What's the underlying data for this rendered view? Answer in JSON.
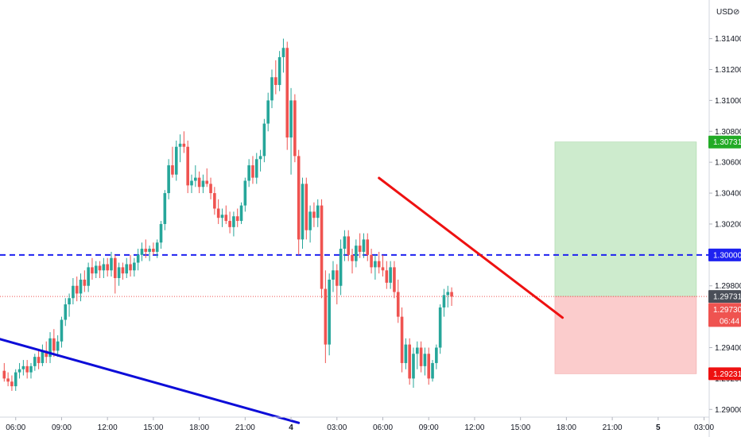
{
  "currency_label": "USD",
  "chart_data": {
    "type": "candlestick",
    "price_axis": {
      "ylim": [
        1.2895,
        1.3165
      ],
      "ticks": [
        "1.31400",
        "1.31200",
        "1.31000",
        "1.30800",
        "1.30600",
        "1.30400",
        "1.30200",
        "1.30000",
        "1.29800",
        "1.29600",
        "1.29400",
        "1.29200",
        "1.29000"
      ],
      "tick_values": [
        1.314,
        1.312,
        1.31,
        1.308,
        1.306,
        1.304,
        1.302,
        1.3,
        1.298,
        1.296,
        1.294,
        1.292,
        1.29
      ]
    },
    "time_axis": {
      "labels": [
        "06:00",
        "09:00",
        "12:00",
        "15:00",
        "18:00",
        "21:00",
        "4",
        "03:00",
        "06:00",
        "09:00",
        "12:00",
        "15:00",
        "18:00",
        "21:00",
        "5",
        "03:00"
      ],
      "index": [
        4,
        16,
        28,
        40,
        52,
        64,
        76,
        88,
        100,
        112,
        124,
        136,
        148,
        160,
        172,
        184
      ],
      "bold": [
        false,
        false,
        false,
        false,
        false,
        false,
        true,
        false,
        false,
        false,
        false,
        false,
        false,
        false,
        true,
        false
      ],
      "range": [
        1,
        184
      ]
    },
    "candles": [
      [
        1.2925,
        1.293,
        1.2918,
        1.292
      ],
      [
        1.292,
        1.2924,
        1.2915,
        1.2918
      ],
      [
        1.2918,
        1.2922,
        1.2912,
        1.2915
      ],
      [
        1.2915,
        1.2926,
        1.2912,
        1.2924
      ],
      [
        1.2924,
        1.293,
        1.292,
        1.2926
      ],
      [
        1.2926,
        1.2932,
        1.2922,
        1.2928
      ],
      [
        1.2928,
        1.2932,
        1.292,
        1.2924
      ],
      [
        1.2924,
        1.293,
        1.292,
        1.2928
      ],
      [
        1.2928,
        1.2936,
        1.2925,
        1.2934
      ],
      [
        1.2934,
        1.2938,
        1.2926,
        1.293
      ],
      [
        1.293,
        1.2942,
        1.2928,
        1.2938
      ],
      [
        1.2938,
        1.2944,
        1.293,
        1.2934
      ],
      [
        1.2934,
        1.295,
        1.293,
        1.2946
      ],
      [
        1.2946,
        1.2952,
        1.2934,
        1.2938
      ],
      [
        1.2938,
        1.2948,
        1.2934,
        1.2944
      ],
      [
        1.2944,
        1.296,
        1.294,
        1.2958
      ],
      [
        1.2958,
        1.2972,
        1.2954,
        1.2968
      ],
      [
        1.2968,
        1.2975,
        1.296,
        1.2972
      ],
      [
        1.2972,
        1.2985,
        1.2968,
        1.298
      ],
      [
        1.298,
        1.2986,
        1.297,
        1.2975
      ],
      [
        1.2975,
        1.2988,
        1.297,
        1.2984
      ],
      [
        1.2984,
        1.299,
        1.2976,
        1.298
      ],
      [
        1.298,
        1.2995,
        1.2976,
        1.2992
      ],
      [
        1.2992,
        1.2998,
        1.2984,
        1.2988
      ],
      [
        1.2988,
        1.2996,
        1.2985,
        1.2993
      ],
      [
        1.2993,
        1.2996,
        1.2985,
        1.299
      ],
      [
        1.299,
        1.2998,
        1.2985,
        1.2994
      ],
      [
        1.2994,
        1.2998,
        1.2986,
        1.299
      ],
      [
        1.299,
        1.3002,
        1.2986,
        1.2998
      ],
      [
        1.2998,
        1.3,
        1.2975,
        1.2985
      ],
      [
        1.2985,
        1.2995,
        1.298,
        1.2992
      ],
      [
        1.2992,
        1.2995,
        1.2984,
        1.2988
      ],
      [
        1.2988,
        1.2998,
        1.2985,
        1.2994
      ],
      [
        1.2994,
        1.3,
        1.2986,
        1.299
      ],
      [
        1.299,
        1.2998,
        1.2986,
        1.2995
      ],
      [
        1.2995,
        1.3004,
        1.299,
        1.3
      ],
      [
        1.3,
        1.3008,
        1.2996,
        1.3004
      ],
      [
        1.3004,
        1.301,
        1.2998,
        1.3002
      ],
      [
        1.3002,
        1.3006,
        1.2996,
        1.3004
      ],
      [
        1.3004,
        1.3008,
        1.3,
        1.3002
      ],
      [
        1.3002,
        1.301,
        1.2998,
        1.3008
      ],
      [
        1.3008,
        1.3022,
        1.3004,
        1.302
      ],
      [
        1.302,
        1.3042,
        1.3016,
        1.304
      ],
      [
        1.304,
        1.3062,
        1.3036,
        1.3058
      ],
      [
        1.3058,
        1.307,
        1.305,
        1.3052
      ],
      [
        1.3052,
        1.3074,
        1.3048,
        1.307
      ],
      [
        1.307,
        1.3078,
        1.306,
        1.3072
      ],
      [
        1.3072,
        1.308,
        1.3066,
        1.307
      ],
      [
        1.307,
        1.3074,
        1.304,
        1.3045
      ],
      [
        1.3045,
        1.3052,
        1.304,
        1.3048
      ],
      [
        1.3048,
        1.3058,
        1.3044,
        1.305
      ],
      [
        1.305,
        1.3054,
        1.304,
        1.3044
      ],
      [
        1.3044,
        1.3052,
        1.304,
        1.3048
      ],
      [
        1.3048,
        1.3056,
        1.3044,
        1.3046
      ],
      [
        1.3046,
        1.305,
        1.3036,
        1.304
      ],
      [
        1.304,
        1.3044,
        1.3026,
        1.303
      ],
      [
        1.303,
        1.3036,
        1.302,
        1.3024
      ],
      [
        1.3024,
        1.303,
        1.3018,
        1.3026
      ],
      [
        1.3026,
        1.3032,
        1.302,
        1.3022
      ],
      [
        1.3022,
        1.3028,
        1.3014,
        1.3018
      ],
      [
        1.3018,
        1.3028,
        1.3012,
        1.3025
      ],
      [
        1.3025,
        1.303,
        1.3018,
        1.3022
      ],
      [
        1.3022,
        1.3034,
        1.302,
        1.3032
      ],
      [
        1.3032,
        1.305,
        1.3028,
        1.3048
      ],
      [
        1.3048,
        1.3062,
        1.3044,
        1.3058
      ],
      [
        1.3058,
        1.3064,
        1.3046,
        1.305
      ],
      [
        1.305,
        1.3066,
        1.3046,
        1.3062
      ],
      [
        1.3062,
        1.3068,
        1.3054,
        1.3064
      ],
      [
        1.3064,
        1.3088,
        1.306,
        1.3085
      ],
      [
        1.3085,
        1.3105,
        1.308,
        1.31
      ],
      [
        1.31,
        1.312,
        1.3095,
        1.3115
      ],
      [
        1.3115,
        1.3126,
        1.3104,
        1.311
      ],
      [
        1.311,
        1.3132,
        1.3106,
        1.3128
      ],
      [
        1.3128,
        1.314,
        1.3118,
        1.3134
      ],
      [
        1.3134,
        1.3138,
        1.3068,
        1.3076
      ],
      [
        1.3076,
        1.3108,
        1.3052,
        1.31
      ],
      [
        1.31,
        1.3104,
        1.306,
        1.3064
      ],
      [
        1.3064,
        1.3068,
        1.3,
        1.301
      ],
      [
        1.301,
        1.305,
        1.3004,
        1.3046
      ],
      [
        1.3046,
        1.305,
        1.301,
        1.3016
      ],
      [
        1.3016,
        1.3032,
        1.3008,
        1.3028
      ],
      [
        1.3028,
        1.3034,
        1.3018,
        1.3024
      ],
      [
        1.3024,
        1.3036,
        1.3018,
        1.3032
      ],
      [
        1.3032,
        1.3036,
        1.2972,
        1.2978
      ],
      [
        1.2978,
        1.299,
        1.293,
        1.2942
      ],
      [
        1.2942,
        1.2988,
        1.2935,
        1.2984
      ],
      [
        1.2984,
        1.2996,
        1.2976,
        1.299
      ],
      [
        1.299,
        1.2994,
        1.2968,
        1.298
      ],
      [
        1.298,
        1.301,
        1.2974,
        1.3004
      ],
      [
        1.3004,
        1.3016,
        1.2996,
        1.3012
      ],
      [
        1.3012,
        1.3016,
        1.2996,
        1.3
      ],
      [
        1.3,
        1.3004,
        1.2988,
        1.2996
      ],
      [
        1.2996,
        1.301,
        1.2992,
        1.3006
      ],
      [
        1.3006,
        1.3014,
        1.2998,
        1.3002
      ],
      [
        1.3002,
        1.3014,
        1.2998,
        1.301
      ],
      [
        1.301,
        1.3014,
        1.2996,
        1.3
      ],
      [
        1.3,
        1.3004,
        1.2988,
        1.2992
      ],
      [
        1.2992,
        1.3,
        1.2984,
        1.2996
      ],
      [
        1.2996,
        1.3002,
        1.2988,
        1.2992
      ],
      [
        1.2992,
        1.3,
        1.2986,
        1.299
      ],
      [
        1.299,
        1.2996,
        1.2978,
        1.2982
      ],
      [
        1.2982,
        1.2996,
        1.2978,
        1.2992
      ],
      [
        1.2992,
        1.2996,
        1.2972,
        1.2976
      ],
      [
        1.2976,
        1.2984,
        1.2956,
        1.296
      ],
      [
        1.296,
        1.2966,
        1.2924,
        1.293
      ],
      [
        1.293,
        1.2946,
        1.2926,
        1.2942
      ],
      [
        1.2942,
        1.2946,
        1.2916,
        1.292
      ],
      [
        1.292,
        1.294,
        1.2914,
        1.2936
      ],
      [
        1.2936,
        1.2944,
        1.2926,
        1.294
      ],
      [
        1.294,
        1.2944,
        1.2924,
        1.2928
      ],
      [
        1.2928,
        1.294,
        1.2922,
        1.2936
      ],
      [
        1.2936,
        1.294,
        1.2916,
        1.292
      ],
      [
        1.292,
        1.2932,
        1.2918,
        1.293
      ],
      [
        1.293,
        1.2942,
        1.2926,
        1.294
      ],
      [
        1.294,
        1.2968,
        1.2936,
        1.2966
      ],
      [
        1.2966,
        1.2978,
        1.296,
        1.2974
      ],
      [
        1.2974,
        1.298,
        1.2966,
        1.2976
      ],
      [
        1.2976,
        1.2979,
        1.2967,
        1.2973
      ]
    ],
    "candle_start_index": 1,
    "overlays": [
      {
        "kind": "horizontal_dashed_line",
        "value": 1.3,
        "color": "#1e22f0"
      },
      {
        "kind": "horizontal_dotted_line",
        "value": 1.29731,
        "color": "#ef5350"
      },
      {
        "kind": "trendline",
        "color": "#0d0dd8",
        "from": [
          -3,
          1.29475
        ],
        "to": [
          78,
          1.28913
        ]
      },
      {
        "kind": "trendline",
        "color": "#ee1111",
        "from": [
          99,
          1.30498
        ],
        "to": [
          147,
          1.29594
        ]
      },
      {
        "kind": "long_position",
        "x_from": 145,
        "x_to": 182,
        "entry": 1.29731,
        "target": 1.30731,
        "stop": 1.29231
      }
    ],
    "price_tags": [
      {
        "text": "1.30731",
        "value": 1.30731,
        "bg": "#22ab26",
        "fg": "#ffffff"
      },
      {
        "text": "1.30000",
        "value": 1.3,
        "bg": "#1e22f0",
        "fg": "#ffffff"
      },
      {
        "text": "1.29731",
        "value": 1.29731,
        "bg": "#4a4e58",
        "fg": "#ffffff"
      },
      {
        "text": "1.29730",
        "value": 1.2973,
        "bg": "#ef5350",
        "fg": "#ffffff",
        "subtext": "06:44",
        "offset": 1
      },
      {
        "text": "1.29231",
        "value": 1.29231,
        "bg": "#ee1111",
        "fg": "#ffffff"
      }
    ],
    "colors": {
      "up": "#26a69a",
      "down": "#ef5350",
      "target_fill": "#cdebcd",
      "stop_fill": "#fbcccc",
      "axis_line": "#cccccc"
    }
  }
}
